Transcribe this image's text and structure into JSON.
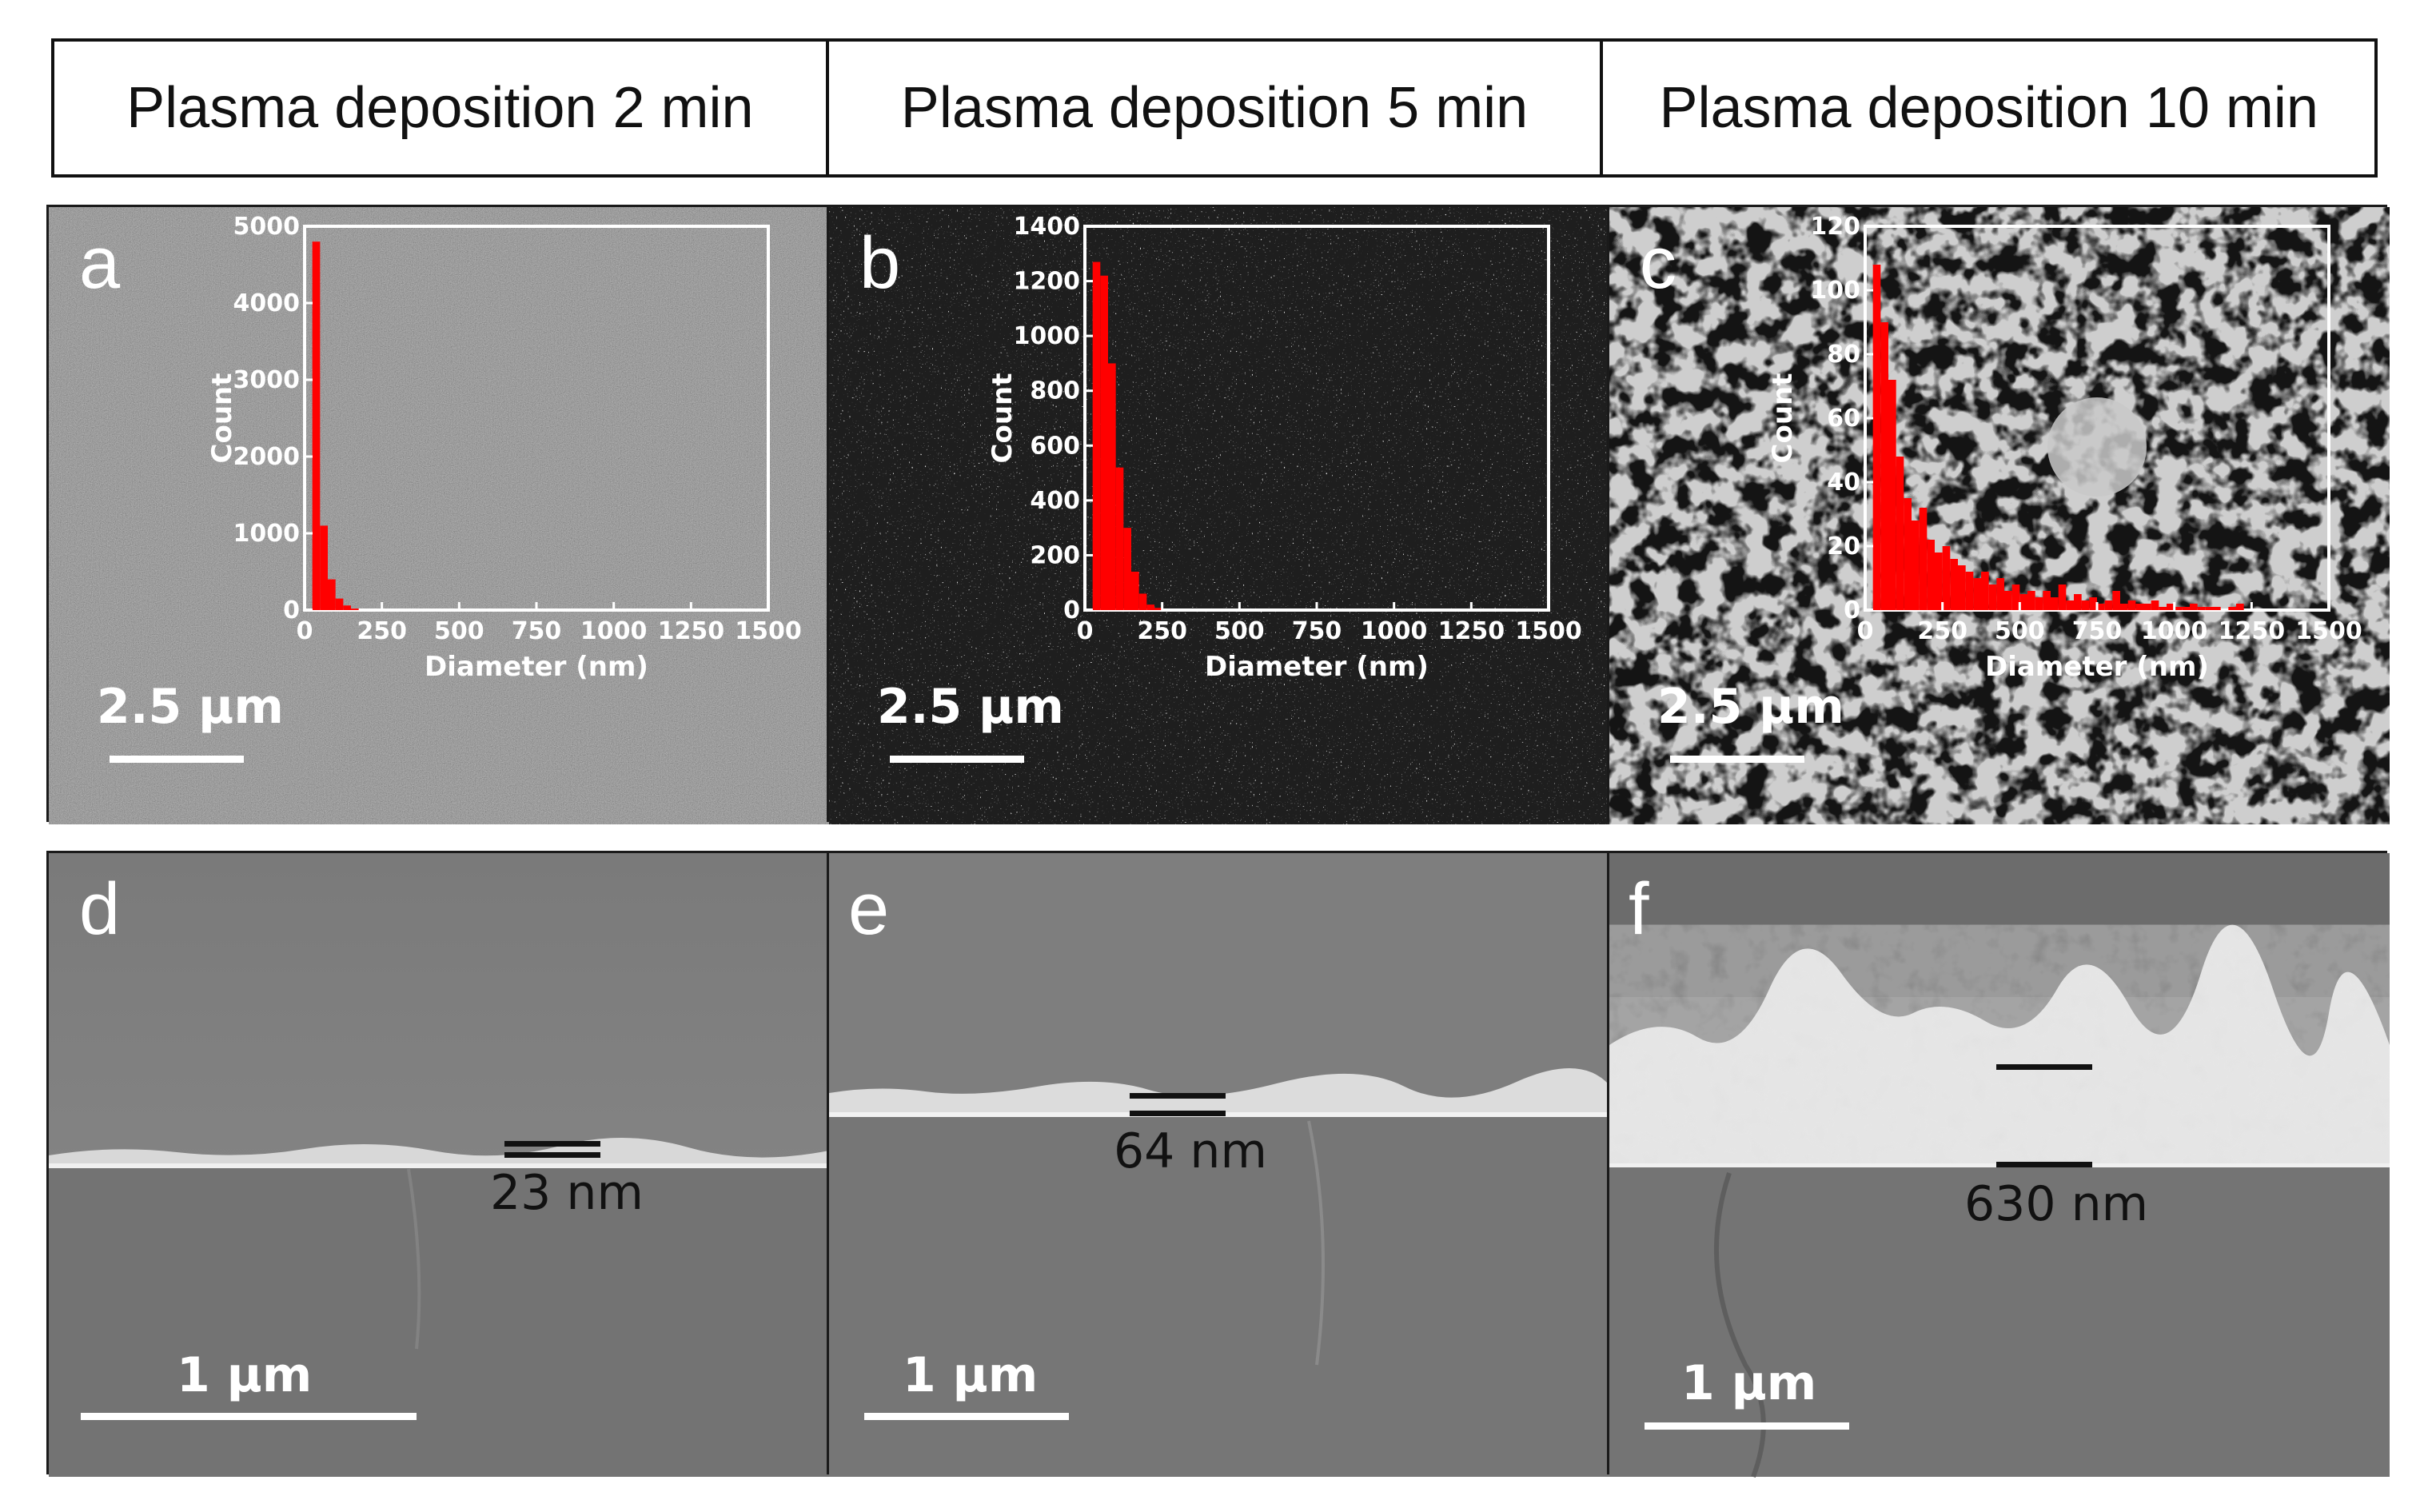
{
  "header": {
    "cells": [
      {
        "label": "Plasma deposition 2 min"
      },
      {
        "label": "Plasma deposition 5 min"
      },
      {
        "label": "Plasma deposition 10 min"
      }
    ]
  },
  "panels": {
    "a": {
      "letter": "a",
      "scale": "2.5 μm"
    },
    "b": {
      "letter": "b",
      "scale": "2.5 μm"
    },
    "c": {
      "letter": "c",
      "scale": "2.5 μm"
    },
    "d": {
      "letter": "d",
      "scale": "1 μm",
      "thickness": "23 nm"
    },
    "e": {
      "letter": "e",
      "scale": "1 μm",
      "thickness": "64 nm"
    },
    "f": {
      "letter": "f",
      "scale": "1 μm",
      "thickness": "630 nm"
    }
  },
  "colors": {
    "histogram": "#ff0000",
    "inset_axis": "#ffffff"
  },
  "chart_data": [
    {
      "type": "bar",
      "panel": "a",
      "xlabel": "Diameter (nm)",
      "ylabel": "Count",
      "xlim": [
        0,
        1500
      ],
      "ylim": [
        0,
        5000
      ],
      "xticks": [
        "0",
        "250",
        "500",
        "750",
        "1000",
        "1250",
        "1500"
      ],
      "yticks": [
        "0",
        "1000",
        "2000",
        "3000",
        "4000",
        "5000"
      ],
      "bin_width": 25,
      "bin_start": 25,
      "values": [
        4800,
        1100,
        400,
        150,
        60,
        20
      ]
    },
    {
      "type": "bar",
      "panel": "b",
      "xlabel": "Diameter (nm)",
      "ylabel": "Count",
      "xlim": [
        0,
        1500
      ],
      "ylim": [
        0,
        1400
      ],
      "xticks": [
        "0",
        "250",
        "500",
        "750",
        "1000",
        "1250",
        "1500"
      ],
      "yticks": [
        "0",
        "200",
        "400",
        "600",
        "800",
        "1000",
        "1200",
        "1400"
      ],
      "bin_width": 25,
      "bin_start": 25,
      "values": [
        1270,
        1220,
        900,
        520,
        300,
        140,
        60,
        20,
        8
      ]
    },
    {
      "type": "bar",
      "panel": "c",
      "xlabel": "Diameter (nm)",
      "ylabel": "Count",
      "xlim": [
        0,
        1500
      ],
      "ylim": [
        0,
        120
      ],
      "xticks": [
        "0",
        "250",
        "500",
        "750",
        "1000",
        "1250",
        "1500"
      ],
      "yticks": [
        "0",
        "20",
        "40",
        "60",
        "80",
        "100",
        "120"
      ],
      "bin_width": 25,
      "bin_start": 25,
      "values": [
        108,
        90,
        72,
        48,
        35,
        28,
        32,
        22,
        18,
        20,
        16,
        14,
        12,
        10,
        12,
        8,
        10,
        6,
        8,
        5,
        6,
        4,
        6,
        4,
        8,
        3,
        5,
        3,
        4,
        2,
        3,
        6,
        2,
        3,
        2,
        2,
        3,
        1,
        2,
        1,
        1,
        2,
        1,
        1,
        1,
        0,
        1,
        2
      ]
    }
  ]
}
